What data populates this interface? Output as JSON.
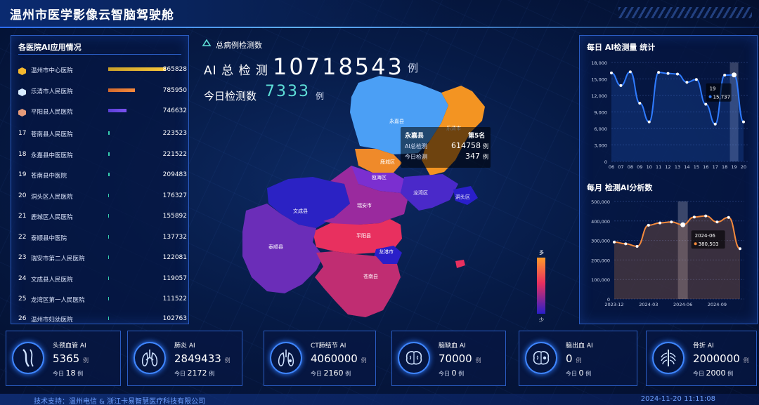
{
  "header": {
    "title": "温州市医学影像云智脑驾驶舱"
  },
  "left": {
    "title": "各医院AI应用情况",
    "items": [
      {
        "rank": "",
        "name": "温州市中心医院",
        "value": "865828"
      },
      {
        "rank": "",
        "name": "乐清市人民医院",
        "value": "785950"
      },
      {
        "rank": "",
        "name": "平阳县人民医院",
        "value": "746632"
      },
      {
        "rank": "17",
        "name": "苍南县人民医院",
        "value": "223523"
      },
      {
        "rank": "18",
        "name": "永嘉县中医医院",
        "value": "221522"
      },
      {
        "rank": "19",
        "name": "苍南县中医院",
        "value": "209483"
      },
      {
        "rank": "20",
        "name": "洞头区人民医院",
        "value": "176327"
      },
      {
        "rank": "21",
        "name": "鹿城区人民医院",
        "value": "155892"
      },
      {
        "rank": "22",
        "name": "泰顺县中医院",
        "value": "137732"
      },
      {
        "rank": "23",
        "name": "瑞安市第二人民医院",
        "value": "122081"
      },
      {
        "rank": "24",
        "name": "文成县人民医院",
        "value": "119057"
      },
      {
        "rank": "25",
        "name": "龙湾区第一人民医院",
        "value": "111522"
      },
      {
        "rank": "26",
        "name": "温州市妇幼医院",
        "value": "102763"
      }
    ]
  },
  "center": {
    "section_title": "总病例检测数",
    "total_label": "AI 总 检 测",
    "total_value": "10718543",
    "total_unit": "例",
    "today_label": "今日检测数",
    "today_value": "7333",
    "today_unit": "例",
    "map_labels": [
      "永嘉县",
      "乐清市",
      "鹿城区",
      "瓯海区",
      "龙湾区",
      "洞头区",
      "文成县",
      "瑞安市",
      "平阳县",
      "泰顺县",
      "龙港市",
      "苍南县"
    ],
    "tooltip": {
      "name": "永嘉县",
      "rank": "第5名",
      "row1_label": "AI总检测",
      "row1_value": "614758",
      "row1_unit": "例",
      "row2_label": "今日检测",
      "row2_value": "347",
      "row2_unit": "例"
    },
    "legend_high": "多",
    "legend_low": "少"
  },
  "right": {
    "daily_title": "每日 AI检测量 统计",
    "monthly_title": "每月 检测AI分析数",
    "daily_tooltip": {
      "x": "19",
      "value": "15,737"
    },
    "monthly_tooltip": {
      "x": "2024-06",
      "value": "380,503"
    }
  },
  "chart_data": [
    {
      "type": "line",
      "title": "每日 AI检测量 统计",
      "x": [
        "06",
        "07",
        "08",
        "09",
        "10",
        "11",
        "12",
        "13",
        "14",
        "15",
        "16",
        "17",
        "18",
        "19",
        "20"
      ],
      "series": [
        {
          "values": [
            16100,
            13800,
            16300,
            10600,
            7200,
            16200,
            16000,
            15900,
            14400,
            14900,
            10400,
            6800,
            15700,
            15737,
            7200
          ]
        }
      ],
      "ylim": [
        0,
        18000
      ],
      "yticks": [
        "0",
        "3,000",
        "6,000",
        "9,000",
        "12,000",
        "15,000",
        "18,000"
      ]
    },
    {
      "type": "area",
      "title": "每月 检测AI分析数",
      "x": [
        "2023-12",
        "2024-01",
        "2024-02",
        "2024-03",
        "2024-04",
        "2024-05",
        "2024-06",
        "2024-07",
        "2024-08",
        "2024-09",
        "2024-10",
        "2024-11"
      ],
      "xticks": [
        "2023-12",
        "2024-03",
        "2024-06",
        "2024-09"
      ],
      "series": [
        {
          "values": [
            292000,
            283000,
            270000,
            378000,
            390000,
            395000,
            380503,
            420000,
            426000,
            395000,
            418000,
            258000
          ]
        }
      ],
      "ylim": [
        0,
        500000
      ],
      "yticks": [
        "0",
        "100,000",
        "200,000",
        "300,000",
        "400,000",
        "500,000"
      ]
    }
  ],
  "cards": [
    {
      "name": "头颈血管 AI",
      "value": "5365",
      "unit": "例",
      "today_label": "今日",
      "today_value": "18",
      "today_unit": "例",
      "icon": "neck-vessel-icon"
    },
    {
      "name": "肺炎 AI",
      "value": "2849433",
      "unit": "例",
      "today_label": "今日",
      "today_value": "2172",
      "today_unit": "例",
      "icon": "lungs-icon"
    },
    {
      "name": "CT肺结节 AI",
      "value": "4060000",
      "unit": "例",
      "today_label": "今日",
      "today_value": "2160",
      "today_unit": "例",
      "icon": "lung-nodule-icon"
    },
    {
      "name": "脑缺血 AI",
      "value": "70000",
      "unit": "例",
      "today_label": "今日",
      "today_value": "0",
      "today_unit": "例",
      "icon": "brain-icon"
    },
    {
      "name": "脑出血 AI",
      "value": "0",
      "unit": "例",
      "today_label": "今日",
      "today_value": "0",
      "today_unit": "例",
      "icon": "brain-bleed-icon"
    },
    {
      "name": "骨折 AI",
      "value": "2000000",
      "unit": "例",
      "today_label": "今日",
      "today_value": "2000",
      "today_unit": "例",
      "icon": "ribcage-icon"
    }
  ],
  "footer": {
    "support": "技术支持：温州电信 & 浙江卡易智慧医疗科技有限公司",
    "time": "2024-11-20 11:11:08"
  },
  "colors": {
    "accent": "#2f7bff",
    "gold": "#f5b82e",
    "orange": "#ff7a2d",
    "cyan": "#5fe0d8"
  }
}
